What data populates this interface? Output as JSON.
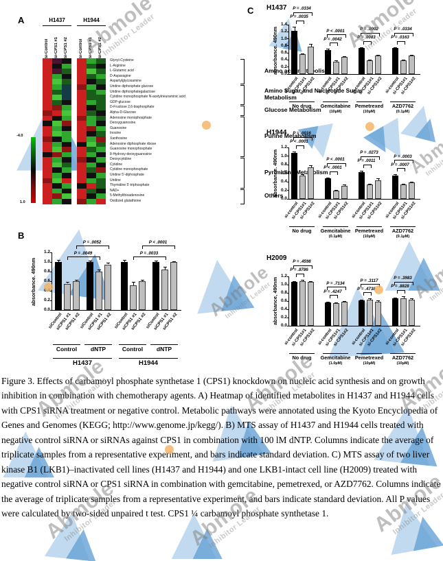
{
  "watermark": {
    "brand": "Abmole",
    "tagline": "Inhibitor Leader"
  },
  "panel_labels": {
    "a": "A",
    "b": "B",
    "c": "C"
  },
  "panel_a": {
    "cell_lines": [
      "H1437",
      "H1944"
    ],
    "col_labels": [
      "si-Control",
      "si-CPS1 #1",
      "si-CPS1 #2"
    ],
    "scale": {
      "top": "-4.0",
      "bottom": "1.0"
    },
    "metabolites": [
      "Glycyl-Cysteine",
      "L-Arginine",
      "L-Glutamic acid",
      "D-Asparagine",
      "Aspartylglycosamine",
      "Uridine diphosphate glucose",
      "Uridine diphosphategalactose",
      "Cytidine monophosphate N-acetylneuraminic acid",
      "GDP-glucose",
      "D-Fructose 2,6-bisphosphate",
      "Alpha-D-Glucose",
      "Adenosine monophosphate",
      "Deoxyguanosine",
      "Guanosine",
      "Inosine",
      "Xanthosine",
      "Adenosine diphosphate ribose",
      "Guanosine monophosphate",
      "8-Hydroxy-deoxyguanosine",
      "Deoxycytidine",
      "Cytidine",
      "Cytidine monophosphate",
      "Uridine 5'-diphosphate",
      "Uridine",
      "Thymidine 5'-triphosphate",
      "NAD+",
      "5-Methylthioadenosine",
      "Oxidized glutathione"
    ],
    "pathways": [
      {
        "name": "Amino acid metabolism",
        "rows": 5
      },
      {
        "name": "Amino Sugar and Nucleotide Sugar Metabolism",
        "rows": 4
      },
      {
        "name": "Glucose Metabolism",
        "rows": 2
      },
      {
        "name": "Purine Metabolism",
        "rows": 8
      },
      {
        "name": "Pyrimidine Metabolism",
        "rows": 6
      },
      {
        "name": "Others",
        "rows": 3
      }
    ],
    "heatmap_colors": [
      [
        "#cc1f1f",
        "#4a1330",
        "#101010",
        "#cc1f1f",
        "#2fa82f",
        "#1a5c1a"
      ],
      [
        "#cc1f1f",
        "#101010",
        "#2fa82f",
        "#cc1f1f",
        "#1a5c1a",
        "#101010"
      ],
      [
        "#cc1f1f",
        "#4a1330",
        "#1a5c1a",
        "#cc1f1f",
        "#49c53b",
        "#1a5c1a"
      ],
      [
        "#cc1f1f",
        "#2fa82f",
        "#101010",
        "#cc1f1f",
        "#1a5c1a",
        "#2fa82f"
      ],
      [
        "#cc1f1f",
        "#49c53b",
        "#1a5c1a",
        "#cc1f1f",
        "#101010",
        "#1a5c1a"
      ],
      [
        "#cc1f1f",
        "#2fa82f",
        "#143c46",
        "#8f1414",
        "#2fa82f",
        "#101010"
      ],
      [
        "#cc1f1f",
        "#1a5c1a",
        "#143c46",
        "#cc1f1f",
        "#1a5c1a",
        "#2fa82f"
      ],
      [
        "#cc1f1f",
        "#49c53b",
        "#143c46",
        "#cc1f1f",
        "#1a5c1a",
        "#1a5c1a"
      ],
      [
        "#cc1f1f",
        "#1a5c1a",
        "#101010",
        "#cc1f1f",
        "#2fa82f",
        "#1a5c1a"
      ],
      [
        "#cc1f1f",
        "#8f1414",
        "#2fa82f",
        "#cc1f1f",
        "#101010",
        "#1a5c1a"
      ],
      [
        "#8f1414",
        "#cc1f1f",
        "#49c53b",
        "#cc1f1f",
        "#1a5c1a",
        "#101010"
      ],
      [
        "#cc1f1f",
        "#101010",
        "#2fa82f",
        "#8f1414",
        "#2fa82f",
        "#1a5c1a"
      ],
      [
        "#101010",
        "#49c53b",
        "#8f1414",
        "#cc1f1f",
        "#2fa82f",
        "#101010"
      ],
      [
        "#cc1f1f",
        "#2fa82f",
        "#101010",
        "#cc1f1f",
        "#8f1414",
        "#2fa82f"
      ],
      [
        "#cc1f1f",
        "#49c53b",
        "#2fa82f",
        "#cc1f1f",
        "#101010",
        "#1a5c1a"
      ],
      [
        "#8f1414",
        "#101010",
        "#2fa82f",
        "#cc1f1f",
        "#2fa82f",
        "#8f1414"
      ],
      [
        "#cc1f1f",
        "#2fa82f",
        "#101010",
        "#101010",
        "#49c53b",
        "#1a5c1a"
      ],
      [
        "#cc1f1f",
        "#49c53b",
        "#8f1414",
        "#cc1f1f",
        "#1a5c1a",
        "#2fa82f"
      ],
      [
        "#101010",
        "#8f1414",
        "#2fa82f",
        "#cc1f1f",
        "#2fa82f",
        "#101010"
      ],
      [
        "#cc1f1f",
        "#2fa82f",
        "#101010",
        "#8f1414",
        "#101010",
        "#2fa82f"
      ],
      [
        "#cc1f1f",
        "#49c53b",
        "#1a5c1a",
        "#cc1f1f",
        "#2fa82f",
        "#101010"
      ],
      [
        "#cc1f1f",
        "#101010",
        "#2fa82f",
        "#cc1f1f",
        "#1a5c1a",
        "#8f1414"
      ],
      [
        "#cc1f1f",
        "#2fa82f",
        "#101010",
        "#cc1f1f",
        "#101010",
        "#2fa82f"
      ],
      [
        "#8f1414",
        "#49c53b",
        "#cc1f1f",
        "#cc1f1f",
        "#2fa82f",
        "#1a5c1a"
      ],
      [
        "#cc1f1f",
        "#101010",
        "#2fa82f",
        "#101010",
        "#cc1f1f",
        "#1a5c1a"
      ],
      [
        "#cc1f1f",
        "#2fa82f",
        "#101010",
        "#cc1f1f",
        "#1a5c1a",
        "#101010"
      ],
      [
        "#cc1f1f",
        "#8f1414",
        "#49c53b",
        "#cc1f1f",
        "#101010",
        "#2fa82f"
      ],
      [
        "#cc1f1f",
        "#2fa82f",
        "#101010",
        "#8f1414",
        "#2fa82f",
        "#cc1f1f"
      ]
    ]
  },
  "chart_data": [
    {
      "id": "B",
      "type": "bar",
      "title": "",
      "ylabel": "absorbance. 490nm",
      "ylim": [
        0,
        1.2
      ],
      "ytick_step": 0.2,
      "bar_labels": [
        "siControl",
        "siCPS1 #1",
        "siCPS1 #2"
      ],
      "groups": [
        {
          "label": "Control",
          "values": [
            1.0,
            0.55,
            0.6
          ],
          "errors": [
            0.04,
            0.03,
            0.03
          ]
        },
        {
          "label": "dNTP",
          "values": [
            1.0,
            0.8,
            0.95
          ],
          "errors": [
            0.03,
            0.05,
            0.03
          ]
        },
        {
          "label": "Control",
          "values": [
            1.0,
            0.52,
            0.6
          ],
          "errors": [
            0.05,
            0.06,
            0.03
          ]
        },
        {
          "label": "dNTP",
          "values": [
            1.0,
            0.85,
            1.0
          ],
          "errors": [
            0.03,
            0.05,
            0.02
          ]
        }
      ],
      "cell_line_spans": [
        {
          "label": "H1437",
          "groups": [
            0,
            1
          ]
        },
        {
          "label": "H1944",
          "groups": [
            2,
            3
          ]
        }
      ],
      "pvalues": [
        {
          "text": "P = .0049",
          "from_group": 0,
          "to_group": 1,
          "bar": 1,
          "level": 1
        },
        {
          "text": "P = .0052",
          "from_group": 0,
          "to_group": 1,
          "bar": 2,
          "level": 2
        },
        {
          "text": "P = .0033",
          "from_group": 2,
          "to_group": 3,
          "bar": 1,
          "level": 1
        },
        {
          "text": "P < .0001",
          "from_group": 2,
          "to_group": 3,
          "bar": 2,
          "level": 2
        }
      ]
    },
    {
      "id": "C1",
      "type": "bar",
      "title": "H1437",
      "ylabel": "absorbance. 490nm",
      "ylim": [
        0,
        1.4
      ],
      "ytick_step": 0.2,
      "bar_labels": [
        "si-control",
        "si-CPS1#1",
        "si-CPS1#2"
      ],
      "groups": [
        {
          "label": "No drug",
          "sub": "",
          "values": [
            1.22,
            0.57,
            0.78
          ],
          "errors": [
            0.13,
            0.02,
            0.08
          ],
          "p1": "P = .0035",
          "p2": "P = .0334"
        },
        {
          "label": "Gemcitabine",
          "sub": "(10µM)",
          "values": [
            0.68,
            0.35,
            0.48
          ],
          "errors": [
            0.03,
            0.04,
            0.02
          ],
          "p1": "P = .0042",
          "p2": "P < .0001"
        },
        {
          "label": "Pemetrexed",
          "sub": "(10µM)",
          "values": [
            0.74,
            0.38,
            0.53
          ],
          "errors": [
            0.02,
            0.03,
            0.02
          ],
          "p1": "P = .0083",
          "p2": "P = .0002"
        },
        {
          "label": "AZD7762",
          "sub": "(0.1µM)",
          "values": [
            0.74,
            0.38,
            0.53
          ],
          "errors": [
            0.02,
            0.03,
            0.02
          ],
          "p1": "P = .0163",
          "p2": "P = .0334"
        }
      ]
    },
    {
      "id": "C2",
      "type": "bar",
      "title": "H1944",
      "ylabel": "absorbance. 490nm",
      "ylim": [
        0,
        1.2
      ],
      "ytick_step": 0.2,
      "bar_labels": [
        "si-control",
        "si-CPS1#1",
        "si-CPS1#2"
      ],
      "groups": [
        {
          "label": "No drug",
          "sub": "",
          "values": [
            1.07,
            0.55,
            0.73
          ],
          "errors": [
            0.04,
            0.02,
            0.05
          ],
          "p1": "P < .0001",
          "p2": "P = .0016"
        },
        {
          "label": "Gemcitabine",
          "sub": "(0.1µM)",
          "values": [
            0.48,
            0.19,
            0.31
          ],
          "errors": [
            0.02,
            0.02,
            0.02
          ],
          "p1": "P < .0001",
          "p2": "P < .0001"
        },
        {
          "label": "Pemetrexed",
          "sub": "(10µM)",
          "values": [
            0.63,
            0.34,
            0.44
          ],
          "errors": [
            0.03,
            0.02,
            0.04
          ],
          "p1": "P = .0011",
          "p2": "P = .0273"
        },
        {
          "label": "AZD7762",
          "sub": "(0.1µM)",
          "values": [
            0.55,
            0.34,
            0.38
          ],
          "errors": [
            0.02,
            0.02,
            0.02
          ],
          "p1": "P = .0007",
          "p2": "P = .0003"
        }
      ]
    },
    {
      "id": "C3",
      "type": "bar",
      "title": "H2009",
      "ylabel": "absorbance, 490nm",
      "ylim": [
        0,
        1.2
      ],
      "ytick_step": 0.2,
      "bar_labels": [
        "si-control",
        "si-CPS1#1",
        "si-CPS1#2"
      ],
      "groups": [
        {
          "label": "No drug",
          "sub": "",
          "values": [
            1.07,
            1.08,
            1.06
          ],
          "errors": [
            0.02,
            0.04,
            0.02
          ],
          "p1": "P = .8786",
          "p2": "P = .4598"
        },
        {
          "label": "Gemcitabine",
          "sub": "(1.0µM)",
          "values": [
            0.57,
            0.55,
            0.59
          ],
          "errors": [
            0.02,
            0.01,
            0.01
          ],
          "p1": "P = .4247",
          "p2": "P = .7134"
        },
        {
          "label": "Pemetrexed",
          "sub": "(10µM)",
          "values": [
            0.62,
            0.64,
            0.59
          ],
          "errors": [
            0.02,
            0.02,
            0.02
          ],
          "p1": "P = .4738",
          "p2": "P = .3117"
        },
        {
          "label": "AZD7762",
          "sub": "(10µM)",
          "values": [
            0.66,
            0.67,
            0.64
          ],
          "errors": [
            0.02,
            0.05,
            0.02
          ],
          "p1": "P = .8828",
          "p2": "P = .3983"
        }
      ]
    }
  ],
  "caption": "Figure 3. Effects of carbamoyl phosphate synthetase 1 (CPS1) knockdown on nucleic acid synthesis and on growth inhibition in combination with chemotherapy agents. A) Heatmap of identified metabolites in H1437 and H1944 cells with CPS1 siRNA treatment or negative control. Metabolic pathways were annotated using the Kyoto Encyclopedia of Genes and Genomes (KEGG; http://www.genome.jp/kegg/). B) MTS assay of H1437 and H1944 cells treated with negative control siRNA or siRNAs against CPS1 in combination with 100 lM dNTP. Columns indicate the average of triplicate samples from a representative experiment, and bars indicate standard deviation. C) MTS assay of two liver kinase B1 (LKB1)–inactivated cell lines (H1437 and H1944) and one LKB1-intact cell line (H2009) treated with negative control siRNA or CPS1 siRNA in combination with gemcitabine, pemetrexed, or AZD7762. Columns indicate the average of triplicate samples from a representative experiment, and bars indicate standard deviation. All P values were calculated by two-sided unpaired t test. CPS1 ¼ carbamoyl phosphate synthetase 1."
}
